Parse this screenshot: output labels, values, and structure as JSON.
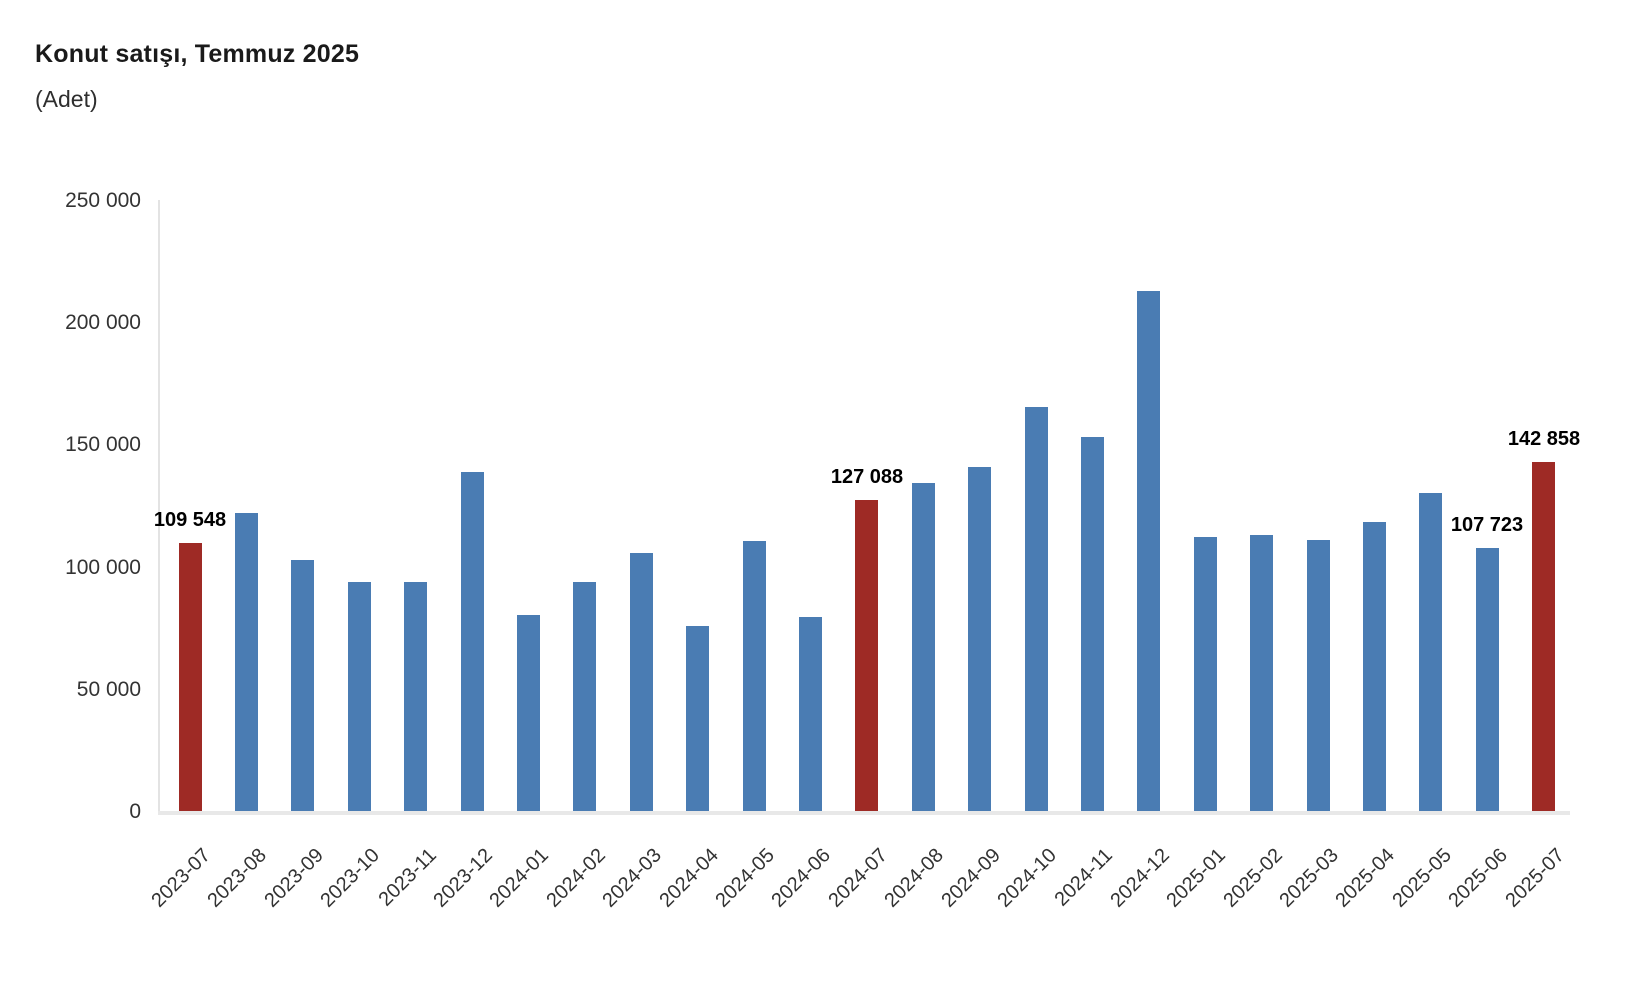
{
  "header": {
    "title": "Konut satışı, Temmuz 2025",
    "subtitle": "(Adet)"
  },
  "chart_data": {
    "type": "bar",
    "title": "Konut satışı, Temmuz 2025",
    "unit_label": "(Adet)",
    "categories": [
      "2023-07",
      "2023-08",
      "2023-09",
      "2023-10",
      "2023-11",
      "2023-12",
      "2024-01",
      "2024-02",
      "2024-03",
      "2024-04",
      "2024-05",
      "2024-06",
      "2024-07",
      "2024-08",
      "2024-09",
      "2024-10",
      "2024-11",
      "2024-12",
      "2025-01",
      "2025-02",
      "2025-03",
      "2025-04",
      "2025-05",
      "2025-06",
      "2025-07"
    ],
    "values": [
      109548,
      122091,
      102656,
      93761,
      93514,
      138577,
      80308,
      93902,
      105476,
      75569,
      110588,
      79313,
      127088,
      134155,
      140919,
      165138,
      153014,
      212637,
      112173,
      112818,
      110795,
      118359,
      130025,
      107723,
      142858
    ],
    "highlighted_categories": [
      "2023-07",
      "2024-07",
      "2025-07"
    ],
    "data_labels": [
      {
        "category": "2023-07",
        "text": "109 548"
      },
      {
        "category": "2024-07",
        "text": "127 088"
      },
      {
        "category": "2025-06",
        "text": "107 723"
      },
      {
        "category": "2025-07",
        "text": "142 858"
      }
    ],
    "y_axis": {
      "min": 0,
      "max": 250000,
      "ticks": [
        {
          "value": 250000,
          "label": "250 000"
        },
        {
          "value": 200000,
          "label": "200 000"
        },
        {
          "value": 150000,
          "label": "150 000"
        },
        {
          "value": 100000,
          "label": "100 000"
        },
        {
          "value": 50000,
          "label": "50 000"
        },
        {
          "value": 0,
          "label": "0"
        }
      ]
    },
    "xlabel": "",
    "ylabel": "",
    "grid": "none",
    "legend": "none",
    "colors": {
      "bar": "#4a7cb3",
      "highlight": "#9e2a25",
      "axis_line": "#e3e3e3",
      "baseline": "#e8e8e8",
      "tick_text": "#333333",
      "data_label_text": "#000000"
    }
  }
}
